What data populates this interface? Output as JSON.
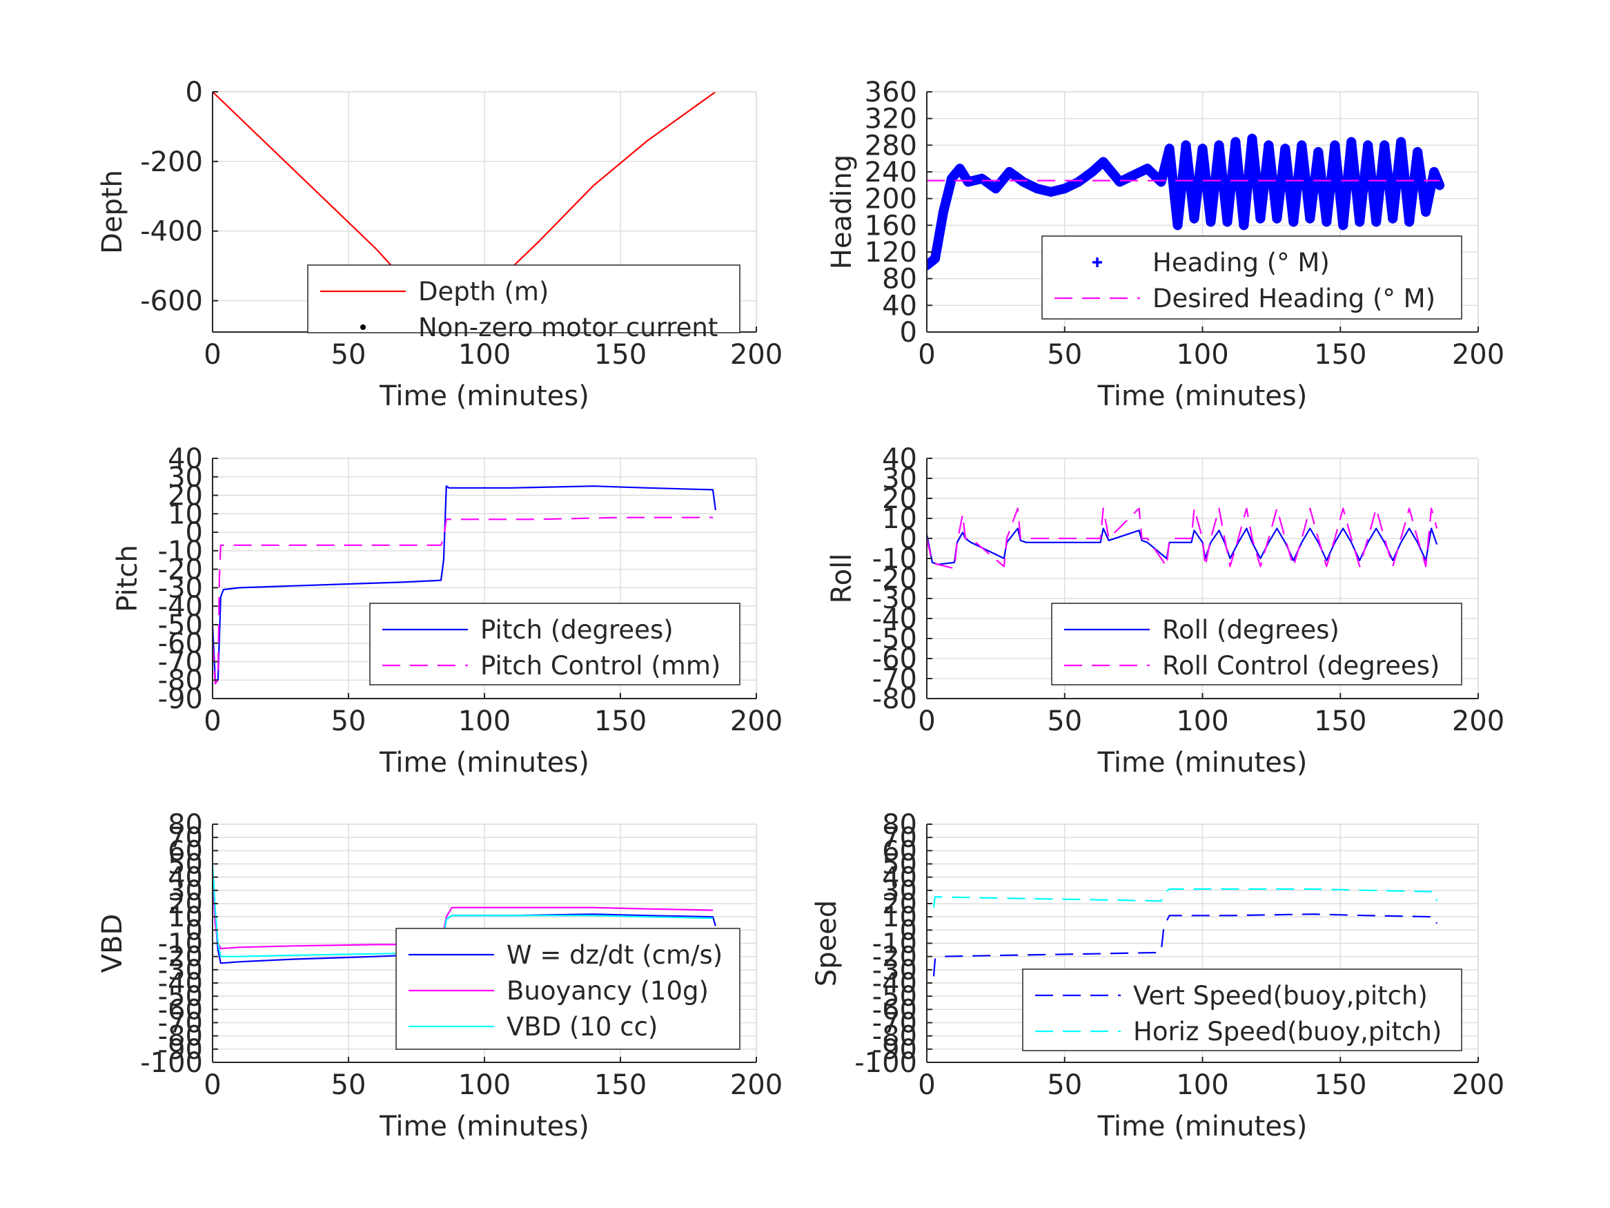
{
  "colors": {
    "grid": "#dedede",
    "axis": "#262626",
    "red": "#ff0000",
    "blue": "#0000ff",
    "magenta": "#ff00ff",
    "cyan": "#00ffff",
    "black": "#000000"
  },
  "chart_data": [
    {
      "id": "depth",
      "type": "line",
      "xlabel": "Time (minutes)",
      "ylabel": "Depth",
      "xlim": [
        0,
        200
      ],
      "ylim": [
        -690,
        0
      ],
      "xticks": [
        0,
        50,
        100,
        150,
        200
      ],
      "yticks": [
        0,
        -200,
        -400,
        -600
      ],
      "grid": true,
      "legend_position": "bottom-right",
      "series": [
        {
          "name": "Depth (m)",
          "style": "solid",
          "color": "#ff0000",
          "x": [
            0,
            20,
            40,
            60,
            80,
            86,
            100,
            120,
            140,
            160,
            185
          ],
          "y": [
            0,
            -150,
            -300,
            -450,
            -620,
            -680,
            -580,
            -430,
            -270,
            -140,
            0
          ]
        },
        {
          "name": "Non-zero motor current",
          "style": "dot",
          "color": "#000000",
          "x": [
            84,
            85,
            86,
            87,
            88
          ],
          "y": [
            -676,
            -679,
            -680,
            -679,
            -676
          ]
        }
      ]
    },
    {
      "id": "heading",
      "type": "line",
      "xlabel": "Time (minutes)",
      "ylabel": "Heading",
      "xlim": [
        0,
        200
      ],
      "ylim": [
        0,
        360
      ],
      "xticks": [
        0,
        50,
        100,
        150,
        200
      ],
      "yticks": [
        0,
        40,
        80,
        120,
        160,
        200,
        240,
        280,
        320,
        360
      ],
      "grid": true,
      "legend_position": "bottom-right",
      "series": [
        {
          "name": "Heading (° M)",
          "style": "plus",
          "color": "#0000ff",
          "x": [
            0,
            3,
            6,
            9,
            12,
            15,
            20,
            25,
            30,
            35,
            40,
            45,
            50,
            55,
            60,
            64,
            70,
            75,
            80,
            85,
            88,
            91,
            94,
            97,
            100,
            103,
            106,
            109,
            112,
            115,
            118,
            121,
            124,
            127,
            130,
            133,
            136,
            139,
            142,
            145,
            148,
            151,
            154,
            157,
            160,
            163,
            166,
            169,
            172,
            175,
            178,
            181,
            184,
            186
          ],
          "y": [
            100,
            110,
            180,
            230,
            245,
            225,
            230,
            215,
            240,
            225,
            215,
            210,
            215,
            225,
            240,
            255,
            225,
            235,
            245,
            225,
            275,
            160,
            280,
            170,
            275,
            165,
            280,
            165,
            285,
            160,
            290,
            170,
            280,
            170,
            275,
            165,
            280,
            170,
            270,
            165,
            280,
            160,
            285,
            165,
            280,
            165,
            280,
            170,
            285,
            165,
            270,
            180,
            240,
            220
          ]
        },
        {
          "name": "Desired Heading (° M)",
          "style": "dash",
          "color": "#ff00ff",
          "x": [
            0,
            186
          ],
          "y": [
            227,
            227
          ]
        }
      ]
    },
    {
      "id": "pitch",
      "type": "line",
      "xlabel": "Time (minutes)",
      "ylabel": "Pitch",
      "xlim": [
        0,
        200
      ],
      "ylim": [
        -90,
        40
      ],
      "xticks": [
        0,
        50,
        100,
        150,
        200
      ],
      "yticks": [
        40,
        30,
        20,
        10,
        0,
        -10,
        -20,
        -30,
        -40,
        -50,
        -60,
        -70,
        -80,
        -90
      ],
      "grid": true,
      "legend_position": "bottom-right",
      "series": [
        {
          "name": "Pitch (degrees)",
          "style": "solid",
          "color": "#0000ff",
          "x": [
            0,
            1,
            2,
            3,
            4,
            10,
            30,
            50,
            70,
            84,
            85,
            86,
            87,
            90,
            110,
            140,
            160,
            184,
            185
          ],
          "y": [
            -50,
            -80,
            -80,
            -35,
            -31,
            -30,
            -29,
            -28,
            -27,
            -26,
            -15,
            25,
            24,
            24,
            24,
            25,
            24,
            23,
            12
          ]
        },
        {
          "name": "Pitch Control (mm)",
          "style": "dash",
          "color": "#ff00ff",
          "x": [
            0,
            1,
            2,
            2.5,
            3,
            84,
            85,
            86,
            90,
            120,
            150,
            184
          ],
          "y": [
            -60,
            -82,
            -80,
            -25,
            -7,
            -7,
            -3,
            7,
            7,
            7,
            8,
            8
          ]
        }
      ]
    },
    {
      "id": "roll",
      "type": "line",
      "xlabel": "Time (minutes)",
      "ylabel": "Roll",
      "xlim": [
        0,
        200
      ],
      "ylim": [
        -80,
        40
      ],
      "xticks": [
        0,
        50,
        100,
        150,
        200
      ],
      "yticks": [
        40,
        30,
        20,
        10,
        0,
        -10,
        -20,
        -30,
        -40,
        -50,
        -60,
        -70,
        -80
      ],
      "grid": true,
      "legend_position": "bottom-right",
      "series": [
        {
          "name": "Roll (degrees)",
          "style": "solid",
          "color": "#0000ff",
          "x": [
            0,
            2,
            4,
            10,
            11,
            13,
            14,
            16,
            28,
            29,
            33,
            34,
            36,
            63,
            64,
            66,
            77,
            78,
            80,
            87,
            88,
            89,
            96,
            97,
            100,
            101,
            103,
            106,
            108,
            110,
            113,
            116,
            118,
            121,
            124,
            127,
            130,
            133,
            136,
            139,
            142,
            145,
            148,
            151,
            154,
            157,
            160,
            163,
            166,
            169,
            172,
            175,
            178,
            181,
            183,
            185
          ],
          "y": [
            2,
            -12,
            -13,
            -12,
            -2,
            3,
            0,
            -2,
            -10,
            -2,
            5,
            -1,
            -2,
            -2,
            5,
            -1,
            4,
            -1,
            -2,
            -10,
            -2,
            -2,
            -2,
            4,
            -2,
            -10,
            -2,
            4,
            -2,
            -10,
            -2,
            5,
            -2,
            -10,
            -2,
            5,
            -2,
            -11,
            -2,
            5,
            -2,
            -11,
            -2,
            5,
            -2,
            -11,
            -2,
            5,
            -2,
            -11,
            -2,
            5,
            -2,
            -11,
            5,
            -3
          ]
        },
        {
          "name": "Roll Control (degrees)",
          "style": "dash",
          "color": "#ff00ff",
          "x": [
            0,
            2,
            4,
            10,
            11,
            13,
            14,
            16,
            28,
            29,
            33,
            34,
            36,
            63,
            64,
            66,
            77,
            78,
            80,
            87,
            88,
            89,
            96,
            97,
            100,
            101,
            103,
            106,
            108,
            110,
            113,
            116,
            118,
            121,
            124,
            127,
            130,
            133,
            136,
            139,
            142,
            145,
            148,
            151,
            154,
            157,
            160,
            163,
            166,
            169,
            172,
            175,
            178,
            181,
            183,
            185
          ],
          "y": [
            0,
            -12,
            -13,
            -15,
            -2,
            12,
            0,
            0,
            -14,
            0,
            15,
            0,
            0,
            0,
            15,
            0,
            15,
            0,
            0,
            -14,
            0,
            0,
            0,
            15,
            0,
            -14,
            0,
            15,
            0,
            -14,
            0,
            15,
            0,
            -14,
            0,
            15,
            0,
            -14,
            0,
            15,
            0,
            -14,
            0,
            15,
            0,
            -14,
            0,
            15,
            0,
            -14,
            0,
            15,
            0,
            -14,
            15,
            5
          ]
        }
      ]
    },
    {
      "id": "vbd",
      "type": "line",
      "xlabel": "Time (minutes)",
      "ylabel": "VBD",
      "xlim": [
        0,
        200
      ],
      "ylim": [
        -100,
        80
      ],
      "xticks": [
        0,
        50,
        100,
        150,
        200
      ],
      "yticks": [
        80,
        70,
        60,
        50,
        40,
        30,
        20,
        10,
        0,
        -10,
        -20,
        -30,
        -40,
        -50,
        -60,
        -70,
        -80,
        -90,
        -100
      ],
      "ytick_labels": [
        "80",
        "70",
        "60",
        "50",
        "40",
        "30",
        "20",
        "10",
        "0",
        "-10",
        "-20",
        "-30",
        "-40",
        "-50",
        "-60",
        "-70",
        "-80",
        "-90",
        "-100"
      ],
      "grid": true,
      "legend_position": "bottom-right",
      "series": [
        {
          "name": "W = dz/dt (cm/s)",
          "style": "solid",
          "color": "#0000ff",
          "x": [
            0,
            1,
            2,
            3,
            10,
            30,
            60,
            84,
            86,
            88,
            110,
            140,
            160,
            184,
            185
          ],
          "y": [
            45,
            10,
            -15,
            -25,
            -24,
            -22,
            -20,
            -18,
            8,
            11,
            11,
            12,
            11,
            10,
            3
          ]
        },
        {
          "name": "Buoyancy (10g)",
          "style": "solid",
          "color": "#ff00ff",
          "x": [
            0,
            1,
            2,
            3,
            10,
            30,
            60,
            84,
            86,
            88,
            110,
            140,
            160,
            184
          ],
          "y": [
            38,
            5,
            -10,
            -14,
            -13,
            -12,
            -11,
            -11,
            10,
            17,
            17,
            17,
            16,
            15
          ]
        },
        {
          "name": "VBD (10 cc)",
          "style": "solid",
          "color": "#00ffff",
          "x": [
            0,
            1,
            2,
            3,
            10,
            30,
            60,
            84,
            86,
            88,
            110,
            140,
            160,
            184
          ],
          "y": [
            50,
            15,
            -10,
            -20,
            -20,
            -19,
            -18,
            -17,
            8,
            11,
            11,
            11,
            10,
            9
          ]
        }
      ]
    },
    {
      "id": "speed",
      "type": "line",
      "xlabel": "Time (minutes)",
      "ylabel": "Speed",
      "xlim": [
        0,
        200
      ],
      "ylim": [
        -100,
        80
      ],
      "xticks": [
        0,
        50,
        100,
        150,
        200
      ],
      "yticks": [
        80,
        70,
        60,
        50,
        40,
        30,
        20,
        10,
        0,
        -10,
        -20,
        -30,
        -40,
        -50,
        -60,
        -70,
        -80,
        -90,
        -100
      ],
      "ytick_labels": [
        "80",
        "70",
        "60",
        "50",
        "40",
        "30",
        "20",
        "10",
        "0",
        "-10",
        "-20",
        "-30",
        "-40",
        "-50",
        "-60",
        "-70",
        "-80",
        "-90",
        "-100"
      ],
      "grid": true,
      "legend_position": "bottom-right",
      "series": [
        {
          "name": "Vert Speed(buoy,pitch)",
          "style": "dash",
          "color": "#0000ff",
          "x": [
            2.5,
            3,
            5,
            30,
            60,
            84,
            85,
            86,
            88,
            110,
            140,
            160,
            184,
            185
          ],
          "y": [
            -35,
            -22,
            -20,
            -19,
            -18,
            -17,
            -16,
            3,
            11,
            11,
            12,
            11,
            10,
            5
          ]
        },
        {
          "name": "Horiz Speed(buoy,pitch)",
          "style": "dash",
          "color": "#00ffff",
          "x": [
            2.5,
            3,
            5,
            30,
            60,
            84,
            85,
            86,
            88,
            110,
            140,
            160,
            184,
            185
          ],
          "y": [
            17,
            25,
            25,
            24,
            23,
            22,
            22,
            28,
            31,
            31,
            31,
            30,
            29,
            22
          ]
        }
      ]
    }
  ]
}
